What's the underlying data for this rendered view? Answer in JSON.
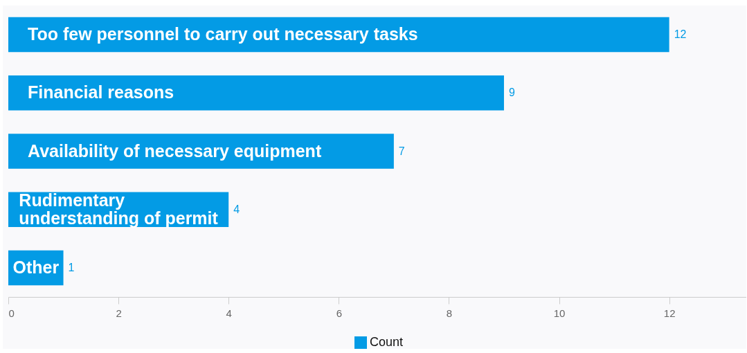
{
  "chart_data": {
    "type": "bar",
    "orientation": "horizontal",
    "categories": [
      "Too few personnel to carry out necessary tasks",
      "Financial reasons",
      "Availability of necessary equipment",
      "Rudimentary understanding of permit",
      "Other"
    ],
    "series": [
      {
        "name": "Count",
        "color": "#039be5",
        "values": [
          12,
          9,
          7,
          4,
          1
        ]
      }
    ],
    "xlim": [
      0,
      13.4
    ],
    "xticks": [
      0,
      2,
      4,
      6,
      8,
      10,
      12
    ],
    "grid": false,
    "data_labels": true,
    "legend": "bottom"
  }
}
